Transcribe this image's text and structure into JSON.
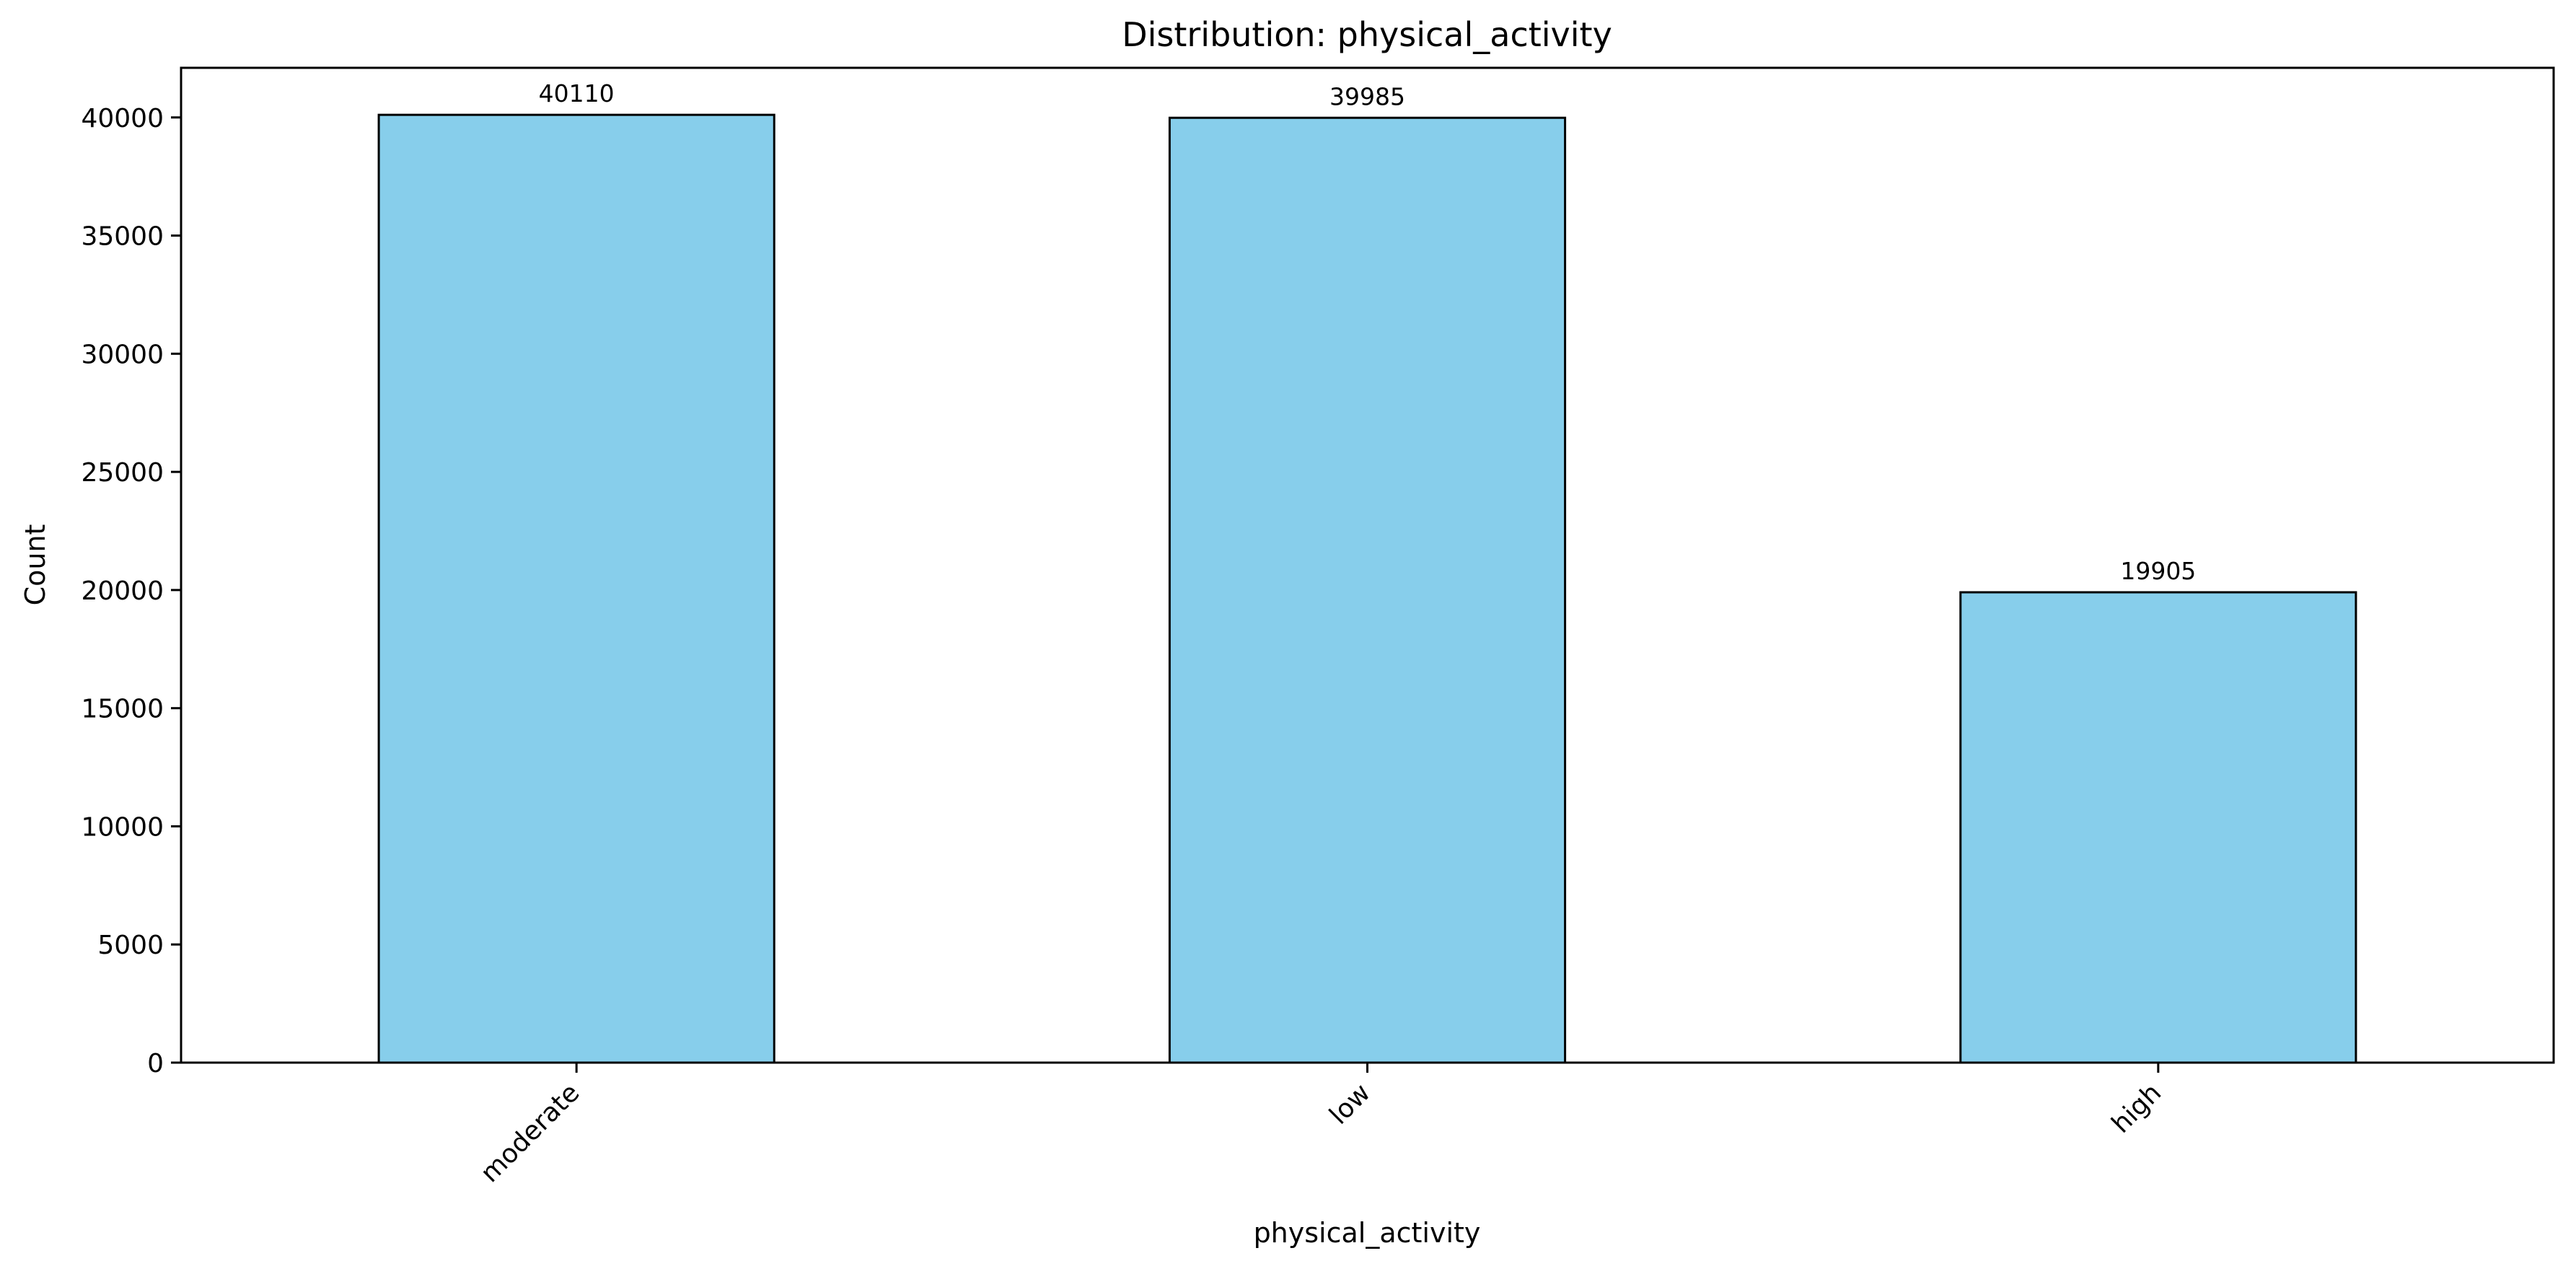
{
  "chart_data": {
    "type": "bar",
    "title": "Distribution: physical_activity",
    "xlabel": "physical_activity",
    "ylabel": "Count",
    "categories": [
      "moderate",
      "low",
      "high"
    ],
    "values": [
      40110,
      39985,
      19905
    ],
    "data_labels": [
      "40110",
      "39985",
      "19905"
    ],
    "ylim": [
      0,
      42100
    ],
    "yticks": [
      0,
      5000,
      10000,
      15000,
      20000,
      25000,
      30000,
      35000,
      40000
    ],
    "ytick_labels": [
      "0",
      "5000",
      "10000",
      "15000",
      "20000",
      "25000",
      "30000",
      "35000",
      "40000"
    ],
    "grid": false,
    "legend": "none",
    "bar_color": "#87CEEB",
    "edge_color": "#000000"
  }
}
